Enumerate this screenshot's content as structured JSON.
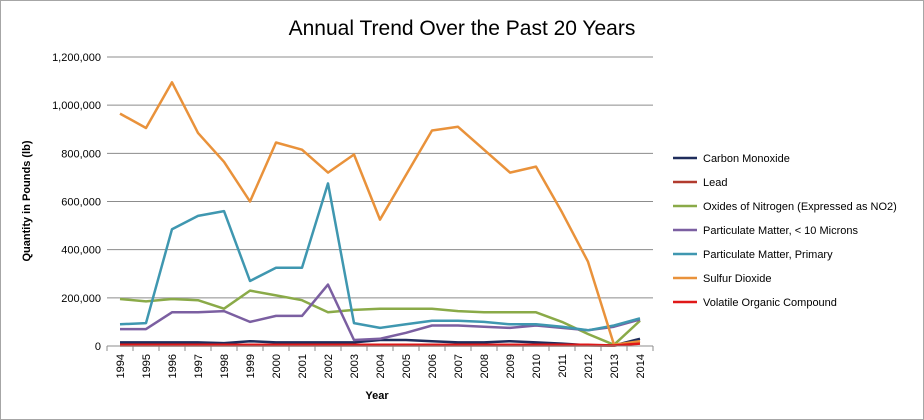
{
  "chart_data": {
    "type": "line",
    "title": "Annual Trend Over the Past 20 Years",
    "xlabel": "Year",
    "ylabel": "Quantity in Pounds (lb)",
    "ylim": [
      0,
      1200000
    ],
    "yticks": [
      "0",
      "200,000",
      "400,000",
      "600,000",
      "800,000",
      "1,000,000",
      "1,200,000"
    ],
    "grid": "horizontal",
    "legend_position": "right",
    "categories": [
      "1994",
      "1995",
      "1996",
      "1997",
      "1998",
      "1999",
      "2000",
      "2001",
      "2002",
      "2003",
      "2004",
      "2005",
      "2006",
      "2007",
      "2008",
      "2009",
      "2010",
      "2011",
      "2012",
      "2013",
      "2014"
    ],
    "series": [
      {
        "name": "Carbon Monoxide",
        "color": "#1f2d5c",
        "values": [
          15000,
          15000,
          15000,
          15000,
          12000,
          20000,
          15000,
          15000,
          15000,
          15000,
          25000,
          25000,
          20000,
          15000,
          15000,
          20000,
          15000,
          10000,
          3000,
          2000,
          30000
        ]
      },
      {
        "name": "Lead",
        "color": "#b23b2e",
        "values": [
          2000,
          2000,
          2000,
          2000,
          2000,
          2000,
          2000,
          2000,
          2000,
          2000,
          2000,
          2000,
          2000,
          2000,
          2000,
          2000,
          2000,
          2000,
          2000,
          1000,
          20000
        ]
      },
      {
        "name": "Oxides of Nitrogen (Expressed as NO2)",
        "color": "#8aaa48",
        "values": [
          195000,
          185000,
          195000,
          190000,
          155000,
          230000,
          210000,
          190000,
          140000,
          150000,
          155000,
          155000,
          155000,
          145000,
          140000,
          140000,
          140000,
          100000,
          50000,
          5000,
          105000
        ]
      },
      {
        "name": "Particulate Matter, < 10 Microns",
        "color": "#7b5fa1",
        "values": [
          70000,
          70000,
          140000,
          140000,
          145000,
          100000,
          125000,
          125000,
          255000,
          25000,
          30000,
          55000,
          85000,
          85000,
          80000,
          75000,
          85000,
          75000,
          65000,
          80000,
          110000
        ]
      },
      {
        "name": "Particulate Matter, Primary",
        "color": "#3f97b0",
        "values": [
          90000,
          95000,
          485000,
          540000,
          560000,
          270000,
          325000,
          325000,
          675000,
          95000,
          75000,
          90000,
          105000,
          105000,
          100000,
          90000,
          90000,
          80000,
          65000,
          85000,
          115000
        ]
      },
      {
        "name": "Sulfur Dioxide",
        "color": "#e9923b",
        "values": [
          965000,
          905000,
          1095000,
          885000,
          765000,
          600000,
          845000,
          815000,
          720000,
          795000,
          525000,
          710000,
          895000,
          910000,
          815000,
          720000,
          745000,
          555000,
          350000,
          5000,
          20000
        ]
      },
      {
        "name": "Volatile Organic Compound",
        "color": "#e01818",
        "values": [
          5000,
          5000,
          5000,
          5000,
          5000,
          5000,
          5000,
          5000,
          5000,
          5000,
          5000,
          5000,
          5000,
          5000,
          5000,
          5000,
          5000,
          5000,
          5000,
          2000,
          10000
        ]
      }
    ]
  }
}
